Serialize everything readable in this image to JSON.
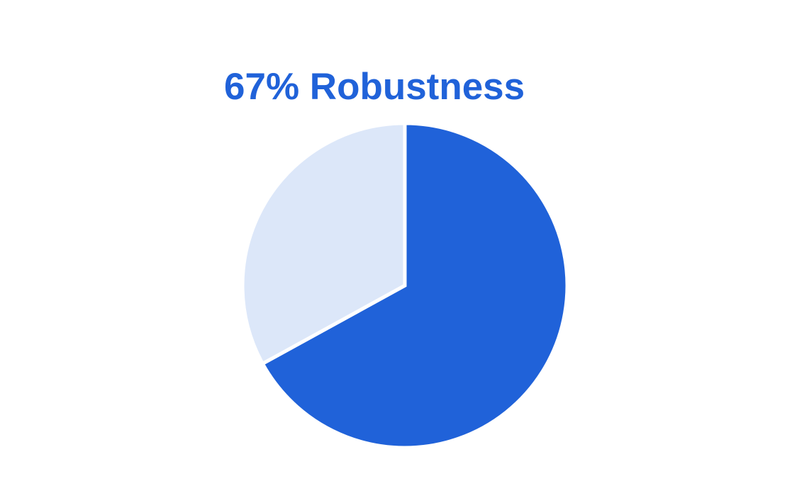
{
  "chart_data": {
    "type": "pie",
    "title": "67% Robustness",
    "slices": [
      {
        "value": 67,
        "color": "#2062d9"
      },
      {
        "value": 33,
        "color": "#dce7f9"
      }
    ],
    "start_angle_deg": 0,
    "direction": "clockwise",
    "legend": "none"
  },
  "colors": {
    "title": "#2062d9",
    "background": "#ffffff",
    "separator": "#ffffff"
  }
}
